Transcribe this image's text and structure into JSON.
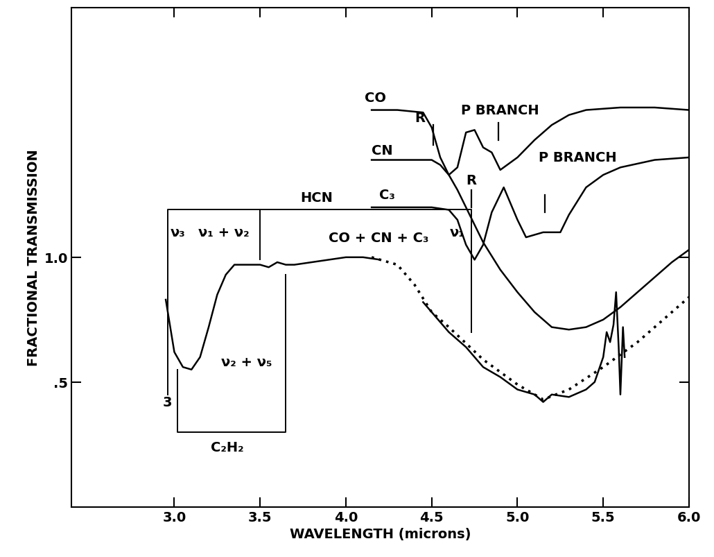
{
  "chart_data": {
    "type": "line",
    "x_label": "WAVELENGTH (microns)",
    "y_label": "FRACTIONAL TRANSMISSION",
    "xlim": [
      2.4,
      6.0
    ],
    "ylim": [
      0.0,
      2.0
    ],
    "xticks": [
      3.0,
      3.5,
      4.0,
      4.5,
      5.0,
      5.5,
      6.0
    ],
    "yticks": [
      {
        "value": 0.5,
        "label": ".5"
      },
      1.0
    ],
    "grid": false,
    "series": [
      {
        "color": "#000000",
        "line_style": "solid",
        "x": [
          2.95,
          3.0,
          3.05,
          3.1,
          3.15,
          3.2,
          3.25,
          3.3,
          3.35,
          3.4,
          3.5,
          3.55,
          3.6,
          3.65,
          3.7,
          3.8,
          3.9,
          4.0,
          4.1,
          4.2,
          4.3,
          4.45,
          4.5,
          4.6,
          4.7,
          4.8,
          4.9,
          5.0,
          5.1,
          5.15,
          5.2,
          5.3,
          5.4,
          5.45,
          5.5,
          5.52,
          5.54,
          5.56,
          5.575,
          5.59,
          5.6,
          5.615,
          5.625
        ],
        "values": [
          0.83,
          0.62,
          0.56,
          0.55,
          0.6,
          0.72,
          0.85,
          0.93,
          0.97,
          0.97,
          0.97,
          0.96,
          0.98,
          0.97,
          0.97,
          0.98,
          0.99,
          1.0,
          1.0,
          0.99,
          null,
          0.82,
          0.78,
          0.7,
          0.64,
          0.56,
          0.52,
          0.47,
          0.45,
          0.42,
          0.45,
          0.44,
          0.47,
          0.5,
          0.6,
          0.7,
          0.66,
          0.73,
          0.86,
          0.64,
          0.45,
          0.72,
          0.6
        ]
      },
      {
        "color": "#000000",
        "line_style": "dotted",
        "x": [
          4.15,
          4.3,
          4.4,
          4.5,
          4.6,
          4.8,
          5.0,
          5.15,
          5.3,
          5.5,
          5.7,
          6.0
        ],
        "values": [
          1.0,
          0.97,
          0.89,
          0.78,
          0.72,
          0.59,
          0.49,
          0.43,
          0.47,
          0.56,
          0.66,
          0.84
        ]
      },
      {
        "color": "#000000",
        "line_style": "solid",
        "x": [
          4.15,
          4.3,
          4.45,
          4.5,
          4.55,
          4.6,
          4.65,
          4.7,
          4.75,
          4.8,
          4.85,
          4.9,
          5.0,
          5.1,
          5.2,
          5.3,
          5.4,
          5.6,
          5.8,
          6.0
        ],
        "values": [
          1.59,
          1.59,
          1.58,
          1.52,
          1.4,
          1.33,
          1.36,
          1.5,
          1.51,
          1.44,
          1.42,
          1.35,
          1.4,
          1.47,
          1.53,
          1.57,
          1.59,
          1.6,
          1.6,
          1.59
        ]
      },
      {
        "color": "#000000",
        "line_style": "solid",
        "x": [
          4.15,
          4.3,
          4.5,
          4.55,
          4.6,
          4.65,
          4.7,
          4.75,
          4.8,
          4.9,
          5.0,
          5.1,
          5.2,
          5.3,
          5.4,
          5.5,
          5.6,
          5.7,
          5.8,
          5.9,
          6.0
        ],
        "values": [
          1.39,
          1.39,
          1.39,
          1.37,
          1.33,
          1.27,
          1.2,
          1.13,
          1.06,
          0.95,
          0.86,
          0.78,
          0.72,
          0.71,
          0.72,
          0.75,
          0.8,
          0.86,
          0.92,
          0.98,
          1.03
        ]
      },
      {
        "color": "#000000",
        "line_style": "solid",
        "x": [
          4.15,
          4.3,
          4.5,
          4.6,
          4.65,
          4.7,
          4.75,
          4.8,
          4.85,
          4.92,
          5.0,
          5.05,
          5.15,
          5.25,
          5.3,
          5.4,
          5.5,
          5.6,
          5.8,
          6.0
        ],
        "values": [
          1.2,
          1.2,
          1.2,
          1.19,
          1.15,
          1.05,
          0.99,
          1.05,
          1.18,
          1.28,
          1.15,
          1.08,
          1.1,
          1.1,
          1.17,
          1.28,
          1.33,
          1.36,
          1.39,
          1.4
        ]
      }
    ],
    "annotations": [
      {
        "text": "CO",
        "x": 4.17,
        "y": 1.64
      },
      {
        "text": "R",
        "x": 4.43,
        "y": 1.56
      },
      {
        "text": "P BRANCH",
        "x": 4.9,
        "y": 1.59
      },
      {
        "text": "CN",
        "x": 4.21,
        "y": 1.43
      },
      {
        "text": "P BRANCH",
        "x": 5.35,
        "y": 1.4
      },
      {
        "text": "R",
        "x": 4.73,
        "y": 1.31
      },
      {
        "text": "HCN",
        "x": 3.83,
        "y": 1.24
      },
      {
        "text": "C₃",
        "x": 4.24,
        "y": 1.25
      },
      {
        "text": "ν₃",
        "x": 3.02,
        "y": 1.1
      },
      {
        "text": "ν₁ + ν₂",
        "x": 3.29,
        "y": 1.1
      },
      {
        "text": "CO + CN + C₃",
        "x": 4.19,
        "y": 1.08
      },
      {
        "text": "ν₁",
        "x": 4.65,
        "y": 1.1
      },
      {
        "text": "ν₂ + ν₅",
        "x": 3.42,
        "y": 0.58
      },
      {
        "text": "3",
        "x": 2.96,
        "y": 0.42
      },
      {
        "text": "C₂H₂",
        "x": 3.31,
        "y": 0.24
      }
    ],
    "brackets": [
      {
        "x": [
          2.96,
          2.96,
          4.73,
          4.73
        ],
        "y": [
          0.45,
          1.19,
          1.19,
          0.7
        ]
      },
      {
        "x": [
          3.5,
          3.5
        ],
        "y": [
          1.19,
          0.99
        ]
      },
      {
        "x": [
          3.02,
          3.02,
          3.65,
          3.65
        ],
        "y": [
          0.55,
          0.3,
          0.3,
          0.93
        ]
      }
    ],
    "branch_marks": [
      {
        "x": 4.51,
        "y": [
          1.45,
          1.53
        ]
      },
      {
        "x": 4.89,
        "y": [
          1.47,
          1.54
        ]
      },
      {
        "x": 4.73,
        "y": [
          1.2,
          1.27
        ]
      },
      {
        "x": 5.16,
        "y": [
          1.18,
          1.25
        ]
      }
    ]
  }
}
